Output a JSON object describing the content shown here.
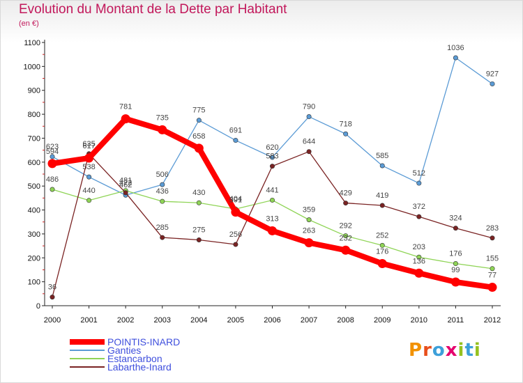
{
  "title": "Evolution du Montant de la Dette par Habitant",
  "subtitle": "(en €)",
  "logo": {
    "letters": [
      "P",
      "r",
      "o",
      "x",
      "i",
      "t",
      "i"
    ],
    "colors": [
      "#f29100",
      "#e84e1b",
      "#3da0da",
      "#e5006d",
      "#95c11f",
      "#3da0da",
      "#95c11f"
    ]
  },
  "chart_data": {
    "type": "line",
    "x": [
      "2000",
      "2001",
      "2002",
      "2003",
      "2004",
      "2005",
      "2006",
      "2007",
      "2008",
      "2009",
      "2010",
      "2011",
      "2012"
    ],
    "yticks": [
      0,
      100,
      200,
      300,
      400,
      500,
      600,
      700,
      800,
      900,
      1000,
      1100
    ],
    "ylim": [
      0,
      1100
    ],
    "grid": false,
    "legend_position": "bottom-left",
    "series": [
      {
        "name": "Ganties",
        "color": "#5b9bd5",
        "values": [
          623,
          538,
          462,
          506,
          775,
          691,
          620,
          790,
          718,
          585,
          512,
          1036,
          927
        ]
      },
      {
        "name": "Estancarbon",
        "color": "#8fd456",
        "values": [
          486,
          440,
          481,
          436,
          430,
          404,
          441,
          359,
          292,
          252,
          203,
          176,
          155
        ]
      },
      {
        "name": "Labarthe-Inard",
        "color": "#7a2323",
        "values": [
          36,
          635,
          472,
          285,
          275,
          256,
          583,
          644,
          429,
          419,
          372,
          324,
          283
        ]
      },
      {
        "name": "POINTIS-INARD",
        "color": "#ff0000",
        "values": [
          594,
          617,
          781,
          735,
          658,
          391,
          313,
          263,
          232,
          176,
          136,
          99,
          77
        ]
      }
    ],
    "legend": [
      "POINTIS-INARD",
      "Ganties",
      "Estancarbon",
      "Labarthe-Inard"
    ]
  }
}
